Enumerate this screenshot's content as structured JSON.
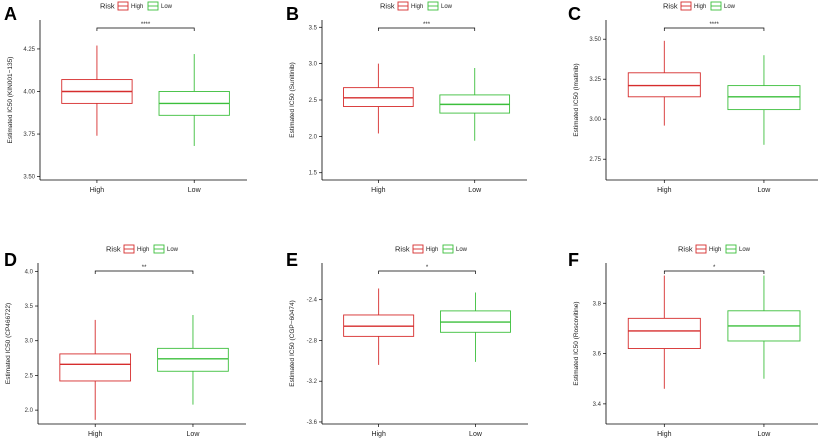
{
  "legend": {
    "title": "Risk",
    "entries": [
      {
        "name": "High",
        "color": "#d62d2d"
      },
      {
        "name": "Low",
        "color": "#3cbf3c"
      }
    ]
  },
  "chart_data": [
    {
      "type": "box",
      "panel": "A",
      "categories": [
        "High",
        "Low"
      ],
      "ylabel": "Estimated IC50 (KIN001−135)",
      "ylim": [
        3.48,
        4.42
      ],
      "yticks": [
        "3.50",
        "3.75",
        "4.00",
        "4.25"
      ],
      "significance": "****",
      "boxes": [
        {
          "name": "High",
          "whisker_low": 3.74,
          "q1": 3.93,
          "median": 4.0,
          "q3": 4.07,
          "whisker_high": 4.27
        },
        {
          "name": "Low",
          "whisker_low": 3.68,
          "q1": 3.86,
          "median": 3.93,
          "q3": 4.0,
          "whisker_high": 4.22
        }
      ]
    },
    {
      "type": "box",
      "panel": "B",
      "categories": [
        "High",
        "Low"
      ],
      "ylabel": "Estimated IC50 (Sunitinib)",
      "ylim": [
        1.4,
        3.6
      ],
      "yticks": [
        "1.5",
        "2.0",
        "2.5",
        "3.0",
        "3.5"
      ],
      "significance": "***",
      "boxes": [
        {
          "name": "High",
          "whisker_low": 2.04,
          "q1": 2.41,
          "median": 2.53,
          "q3": 2.67,
          "whisker_high": 3.0
        },
        {
          "name": "Low",
          "whisker_low": 1.94,
          "q1": 2.32,
          "median": 2.44,
          "q3": 2.57,
          "whisker_high": 2.94
        }
      ]
    },
    {
      "type": "box",
      "panel": "C",
      "categories": [
        "High",
        "Low"
      ],
      "ylabel": "Estimated IC50 (Imatinib)",
      "ylim": [
        2.62,
        3.62
      ],
      "yticks": [
        "2.75",
        "3.00",
        "3.25",
        "3.50"
      ],
      "significance": "****",
      "boxes": [
        {
          "name": "High",
          "whisker_low": 2.96,
          "q1": 3.14,
          "median": 3.21,
          "q3": 3.29,
          "whisker_high": 3.49
        },
        {
          "name": "Low",
          "whisker_low": 2.84,
          "q1": 3.06,
          "median": 3.14,
          "q3": 3.21,
          "whisker_high": 3.4
        }
      ]
    },
    {
      "type": "box",
      "panel": "D",
      "categories": [
        "High",
        "Low"
      ],
      "ylabel": "Estimated IC50 (CP466722)",
      "ylim": [
        1.8,
        4.12
      ],
      "yticks": [
        "2.0",
        "2.5",
        "3.0",
        "3.5",
        "4.0"
      ],
      "significance": "**",
      "boxes": [
        {
          "name": "High",
          "whisker_low": 1.86,
          "q1": 2.42,
          "median": 2.66,
          "q3": 2.81,
          "whisker_high": 3.3
        },
        {
          "name": "Low",
          "whisker_low": 2.08,
          "q1": 2.56,
          "median": 2.74,
          "q3": 2.89,
          "whisker_high": 3.37
        }
      ]
    },
    {
      "type": "box",
      "panel": "E",
      "categories": [
        "High",
        "Low"
      ],
      "ylabel": "Estimated IC50 (CGP−60474)",
      "ylim": [
        -3.62,
        -2.04
      ],
      "yticks": [
        "-3.6",
        "-3.2",
        "-2.8",
        "-2.4"
      ],
      "significance": "*",
      "boxes": [
        {
          "name": "High",
          "whisker_low": -3.04,
          "q1": -2.76,
          "median": -2.66,
          "q3": -2.55,
          "whisker_high": -2.29
        },
        {
          "name": "Low",
          "whisker_low": -3.01,
          "q1": -2.72,
          "median": -2.62,
          "q3": -2.51,
          "whisker_high": -2.33
        }
      ]
    },
    {
      "type": "box",
      "panel": "F",
      "categories": [
        "High",
        "Low"
      ],
      "ylabel": "Estimated IC50 (Roscovitine)",
      "ylim": [
        3.32,
        3.96
      ],
      "yticks": [
        "3.4",
        "3.6",
        "3.8"
      ],
      "significance": "*",
      "boxes": [
        {
          "name": "High",
          "whisker_low": 3.46,
          "q1": 3.62,
          "median": 3.69,
          "q3": 3.74,
          "whisker_high": 3.91
        },
        {
          "name": "Low",
          "whisker_low": 3.5,
          "q1": 3.65,
          "median": 3.71,
          "q3": 3.77,
          "whisker_high": 3.91
        }
      ]
    }
  ]
}
